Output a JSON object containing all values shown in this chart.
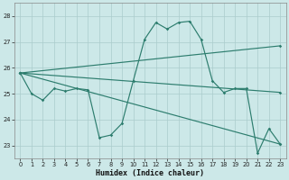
{
  "xlabel": "Humidex (Indice chaleur)",
  "background_color": "#cce8e8",
  "grid_color": "#aacccc",
  "line_color": "#2d7d6e",
  "xlim": [
    -0.5,
    23.5
  ],
  "ylim": [
    22.5,
    28.5
  ],
  "yticks": [
    23,
    24,
    25,
    26,
    27,
    28
  ],
  "xticks": [
    0,
    1,
    2,
    3,
    4,
    5,
    6,
    7,
    8,
    9,
    10,
    11,
    12,
    13,
    14,
    15,
    16,
    17,
    18,
    19,
    20,
    21,
    22,
    23
  ],
  "zigzag": {
    "x": [
      0,
      1,
      2,
      3,
      4,
      5,
      6,
      7,
      8,
      9,
      10,
      11,
      12,
      13,
      14,
      15,
      16,
      17,
      18,
      19,
      20,
      21,
      22,
      23
    ],
    "y": [
      25.8,
      25.0,
      24.75,
      25.2,
      25.1,
      25.2,
      25.15,
      23.3,
      23.4,
      23.85,
      25.5,
      27.1,
      27.75,
      27.5,
      27.75,
      27.8,
      27.1,
      25.5,
      25.05,
      25.2,
      25.2,
      22.7,
      23.65,
      23.05
    ]
  },
  "line_up": {
    "x": [
      0,
      23
    ],
    "y": [
      25.8,
      26.85
    ]
  },
  "line_flat": {
    "x": [
      0,
      23
    ],
    "y": [
      25.8,
      25.05
    ]
  },
  "line_down": {
    "x": [
      0,
      23
    ],
    "y": [
      25.8,
      23.05
    ]
  }
}
